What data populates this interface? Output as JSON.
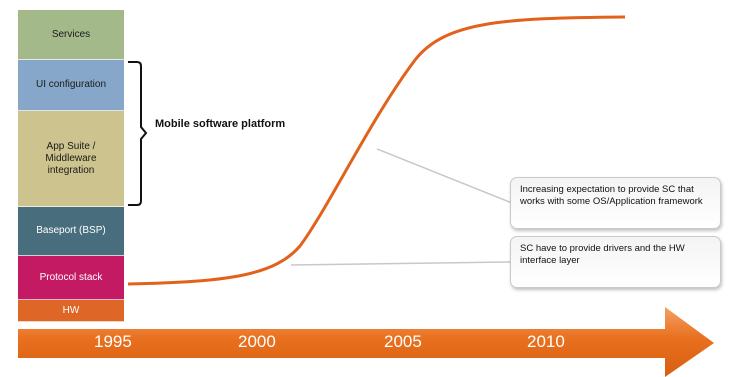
{
  "stack": [
    {
      "label": "Services",
      "color": "#a3b98a"
    },
    {
      "label": "UI configuration",
      "color": "#86a7c9"
    },
    {
      "label": "App Suite / Middleware integration",
      "color": "#cdc38e"
    },
    {
      "label": "Baseport (BSP)",
      "color": "#486e7e",
      "light": true
    },
    {
      "label": "Protocol stack",
      "color": "#c41a64",
      "light": true
    },
    {
      "label": "HW",
      "color": "#de6626",
      "light": true
    }
  ],
  "platform_label": "Mobile software platform",
  "callouts": {
    "top": "Increasing expectation to provide SC that works with some OS/Application framework",
    "bottom": "SC have to provide drivers and the HW interface layer"
  },
  "timeline": {
    "years": [
      "1995",
      "2000",
      "2005",
      "2010"
    ],
    "arrow_color": "#e8701e"
  },
  "curve_color": "#e2621b"
}
